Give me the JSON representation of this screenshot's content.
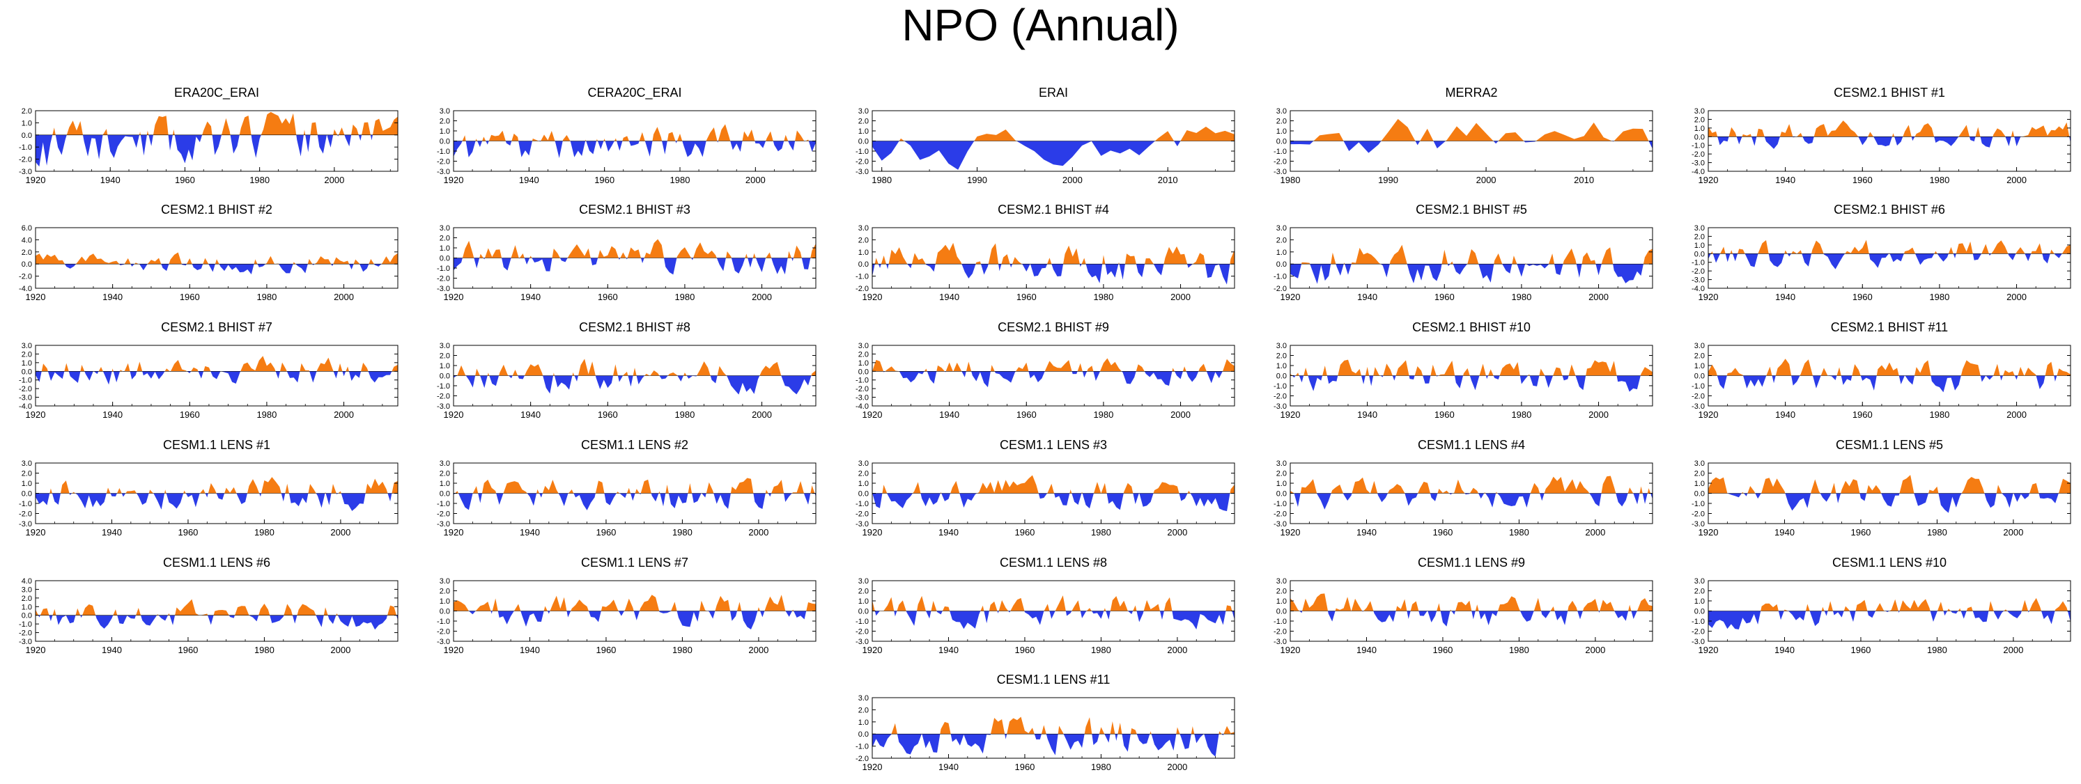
{
  "title": "NPO (Annual)",
  "colors": {
    "positive": "#f57c12",
    "negative": "#2b3ce8",
    "axis": "#000000"
  },
  "chart_data": [
    {
      "type": "area",
      "title": "ERA20C_ERAI",
      "x_start": 1920,
      "x_end": 2017,
      "xticks": [
        1920,
        1940,
        1960,
        1980,
        2000
      ],
      "ylim": [
        -3,
        2
      ],
      "yticks": [
        "2.0",
        "1.0",
        "0.0",
        "-1.0",
        "-2.0",
        "-3.0"
      ],
      "seed": 11,
      "amp": 1.2,
      "trend": 0.016,
      "bias": -0.4
    },
    {
      "type": "area",
      "title": "CERA20C_ERAI",
      "x_start": 1920,
      "x_end": 2016,
      "xticks": [
        1920,
        1940,
        1960,
        1980,
        2000
      ],
      "ylim": [
        -3,
        3
      ],
      "yticks": [
        "3.0",
        "2.0",
        "1.0",
        "0.0",
        "-1.0",
        "-2.0",
        "-3.0"
      ],
      "seed": 12,
      "amp": 1.0,
      "trend": 0.012,
      "bias": -0.3
    },
    {
      "type": "area",
      "title": "ERAI",
      "x_start": 1979,
      "x_end": 2017,
      "xticks": [
        1980,
        1990,
        2000,
        2010
      ],
      "ylim": [
        -3,
        3
      ],
      "yticks": [
        "3.0",
        "2.0",
        "1.0",
        "0.0",
        "-1.0",
        "-2.0",
        "-3.0"
      ],
      "seed": 13,
      "amp": 1.2,
      "trend": 0,
      "bias": 0,
      "smooth": 0.75
    },
    {
      "type": "area",
      "title": "MERRA2",
      "x_start": 1980,
      "x_end": 2017,
      "xticks": [
        1980,
        1990,
        2000,
        2010
      ],
      "ylim": [
        -3,
        3
      ],
      "yticks": [
        "3.0",
        "2.0",
        "1.0",
        "0.0",
        "-1.0",
        "-2.0",
        "-3.0"
      ],
      "seed": 14,
      "amp": 1.2,
      "trend": 0,
      "bias": 0,
      "smooth": 0.75
    },
    {
      "type": "area",
      "title": "CESM2.1 BHIST #1",
      "x_start": 1920,
      "x_end": 2014,
      "xticks": [
        1920,
        1940,
        1960,
        1980,
        2000
      ],
      "ylim": [
        -4,
        3
      ],
      "yticks": [
        "3.0",
        "2.0",
        "1.0",
        "0.0",
        "-1.0",
        "-2.0",
        "-3.0",
        "-4.0"
      ],
      "seed": 21,
      "amp": 1.0,
      "trend": 0,
      "bias": 0
    },
    {
      "type": "area",
      "title": "CESM2.1 BHIST #2",
      "x_start": 1920,
      "x_end": 2014,
      "xticks": [
        1920,
        1940,
        1960,
        1980,
        2000
      ],
      "ylim": [
        -4,
        6
      ],
      "yticks": [
        "6.0",
        "4.0",
        "2.0",
        "0.0",
        "-2.0",
        "-4.0"
      ],
      "seed": 22,
      "amp": 1.0,
      "trend": 0,
      "bias": 0
    },
    {
      "type": "area",
      "title": "CESM2.1 BHIST #3",
      "x_start": 1920,
      "x_end": 2014,
      "xticks": [
        1920,
        1940,
        1960,
        1980,
        2000
      ],
      "ylim": [
        -3,
        3
      ],
      "yticks": [
        "3.0",
        "2.0",
        "1.0",
        "0.0",
        "-1.0",
        "-2.0",
        "-3.0"
      ],
      "seed": 23,
      "amp": 1.0,
      "trend": 0,
      "bias": 0
    },
    {
      "type": "area",
      "title": "CESM2.1 BHIST #4",
      "x_start": 1920,
      "x_end": 2014,
      "xticks": [
        1920,
        1940,
        1960,
        1980,
        2000
      ],
      "ylim": [
        -2,
        3
      ],
      "yticks": [
        "3.0",
        "2.0",
        "1.0",
        "0.0",
        "-1.0",
        "-2.0"
      ],
      "seed": 24,
      "amp": 1.0,
      "trend": 0,
      "bias": 0
    },
    {
      "type": "area",
      "title": "CESM2.1 BHIST #5",
      "x_start": 1920,
      "x_end": 2014,
      "xticks": [
        1920,
        1940,
        1960,
        1980,
        2000
      ],
      "ylim": [
        -2,
        3
      ],
      "yticks": [
        "3.0",
        "2.0",
        "1.0",
        "0.0",
        "-1.0",
        "-2.0"
      ],
      "seed": 25,
      "amp": 1.0,
      "trend": 0,
      "bias": 0
    },
    {
      "type": "area",
      "title": "CESM2.1 BHIST #6",
      "x_start": 1920,
      "x_end": 2014,
      "xticks": [
        1920,
        1940,
        1960,
        1980,
        2000
      ],
      "ylim": [
        -4,
        3
      ],
      "yticks": [
        "3.0",
        "2.0",
        "1.0",
        "0.0",
        "-1.0",
        "-2.0",
        "-3.0",
        "-4.0"
      ],
      "seed": 26,
      "amp": 1.0,
      "trend": 0,
      "bias": 0
    },
    {
      "type": "area",
      "title": "CESM2.1 BHIST #7",
      "x_start": 1920,
      "x_end": 2014,
      "xticks": [
        1920,
        1940,
        1960,
        1980,
        2000
      ],
      "ylim": [
        -4,
        3
      ],
      "yticks": [
        "3.0",
        "2.0",
        "1.0",
        "0.0",
        "-1.0",
        "-2.0",
        "-3.0",
        "-4.0"
      ],
      "seed": 27,
      "amp": 1.0,
      "trend": 0,
      "bias": 0
    },
    {
      "type": "area",
      "title": "CESM2.1 BHIST #8",
      "x_start": 1920,
      "x_end": 2014,
      "xticks": [
        1920,
        1940,
        1960,
        1980,
        2000
      ],
      "ylim": [
        -3,
        3
      ],
      "yticks": [
        "3.0",
        "2.0",
        "1.0",
        "0.0",
        "-1.0",
        "-2.0",
        "-3.0"
      ],
      "seed": 28,
      "amp": 1.0,
      "trend": 0,
      "bias": 0
    },
    {
      "type": "area",
      "title": "CESM2.1 BHIST #9",
      "x_start": 1920,
      "x_end": 2014,
      "xticks": [
        1920,
        1940,
        1960,
        1980,
        2000
      ],
      "ylim": [
        -4,
        3
      ],
      "yticks": [
        "3.0",
        "2.0",
        "1.0",
        "0.0",
        "-1.0",
        "-2.0",
        "-3.0",
        "-4.0"
      ],
      "seed": 29,
      "amp": 1.0,
      "trend": 0,
      "bias": 0
    },
    {
      "type": "area",
      "title": "CESM2.1 BHIST #10",
      "x_start": 1920,
      "x_end": 2014,
      "xticks": [
        1920,
        1940,
        1960,
        1980,
        2000
      ],
      "ylim": [
        -3,
        3
      ],
      "yticks": [
        "3.0",
        "2.0",
        "1.0",
        "0.0",
        "-1.0",
        "-2.0",
        "-3.0"
      ],
      "seed": 30,
      "amp": 1.0,
      "trend": 0,
      "bias": 0
    },
    {
      "type": "area",
      "title": "CESM2.1 BHIST #11",
      "x_start": 1920,
      "x_end": 2014,
      "xticks": [
        1920,
        1940,
        1960,
        1980,
        2000
      ],
      "ylim": [
        -3,
        3
      ],
      "yticks": [
        "3.0",
        "2.0",
        "1.0",
        "0.0",
        "-1.0",
        "-2.0",
        "-3.0"
      ],
      "seed": 31,
      "amp": 1.0,
      "trend": 0,
      "bias": 0
    },
    {
      "type": "area",
      "title": "CESM1.1 LENS #1",
      "x_start": 1920,
      "x_end": 2015,
      "xticks": [
        1920,
        1940,
        1960,
        1980,
        2000
      ],
      "ylim": [
        -3,
        3
      ],
      "yticks": [
        "3.0",
        "2.0",
        "1.0",
        "0.0",
        "-1.0",
        "-2.0",
        "-3.0"
      ],
      "seed": 41,
      "amp": 1.0,
      "trend": 0,
      "bias": 0
    },
    {
      "type": "area",
      "title": "CESM1.1 LENS #2",
      "x_start": 1920,
      "x_end": 2015,
      "xticks": [
        1920,
        1940,
        1960,
        1980,
        2000
      ],
      "ylim": [
        -3,
        3
      ],
      "yticks": [
        "3.0",
        "2.0",
        "1.0",
        "0.0",
        "-1.0",
        "-2.0",
        "-3.0"
      ],
      "seed": 42,
      "amp": 1.0,
      "trend": 0,
      "bias": 0
    },
    {
      "type": "area",
      "title": "CESM1.1 LENS #3",
      "x_start": 1920,
      "x_end": 2015,
      "xticks": [
        1920,
        1940,
        1960,
        1980,
        2000
      ],
      "ylim": [
        -3,
        3
      ],
      "yticks": [
        "3.0",
        "2.0",
        "1.0",
        "0.0",
        "-1.0",
        "-2.0",
        "-3.0"
      ],
      "seed": 43,
      "amp": 1.0,
      "trend": 0,
      "bias": 0
    },
    {
      "type": "area",
      "title": "CESM1.1 LENS #4",
      "x_start": 1920,
      "x_end": 2015,
      "xticks": [
        1920,
        1940,
        1960,
        1980,
        2000
      ],
      "ylim": [
        -3,
        3
      ],
      "yticks": [
        "3.0",
        "2.0",
        "1.0",
        "0.0",
        "-1.0",
        "-2.0",
        "-3.0"
      ],
      "seed": 44,
      "amp": 1.0,
      "trend": 0,
      "bias": 0
    },
    {
      "type": "area",
      "title": "CESM1.1 LENS #5",
      "x_start": 1920,
      "x_end": 2015,
      "xticks": [
        1920,
        1940,
        1960,
        1980,
        2000
      ],
      "ylim": [
        -3,
        3
      ],
      "yticks": [
        "3.0",
        "2.0",
        "1.0",
        "0.0",
        "-1.0",
        "-2.0",
        "-3.0"
      ],
      "seed": 45,
      "amp": 1.0,
      "trend": 0,
      "bias": 0
    },
    {
      "type": "area",
      "title": "CESM1.1 LENS #6",
      "x_start": 1920,
      "x_end": 2015,
      "xticks": [
        1920,
        1940,
        1960,
        1980,
        2000
      ],
      "ylim": [
        -3,
        4
      ],
      "yticks": [
        "4.0",
        "3.0",
        "2.0",
        "1.0",
        "0.0",
        "-1.0",
        "-2.0",
        "-3.0"
      ],
      "seed": 46,
      "amp": 1.0,
      "trend": 0,
      "bias": 0
    },
    {
      "type": "area",
      "title": "CESM1.1 LENS #7",
      "x_start": 1920,
      "x_end": 2015,
      "xticks": [
        1920,
        1940,
        1960,
        1980,
        2000
      ],
      "ylim": [
        -3,
        3
      ],
      "yticks": [
        "3.0",
        "2.0",
        "1.0",
        "0.0",
        "-1.0",
        "-2.0",
        "-3.0"
      ],
      "seed": 47,
      "amp": 1.0,
      "trend": 0,
      "bias": 0
    },
    {
      "type": "area",
      "title": "CESM1.1 LENS #8",
      "x_start": 1920,
      "x_end": 2015,
      "xticks": [
        1920,
        1940,
        1960,
        1980,
        2000
      ],
      "ylim": [
        -3,
        3
      ],
      "yticks": [
        "3.0",
        "2.0",
        "1.0",
        "0.0",
        "-1.0",
        "-2.0",
        "-3.0"
      ],
      "seed": 48,
      "amp": 1.0,
      "trend": 0,
      "bias": 0
    },
    {
      "type": "area",
      "title": "CESM1.1 LENS #9",
      "x_start": 1920,
      "x_end": 2015,
      "xticks": [
        1920,
        1940,
        1960,
        1980,
        2000
      ],
      "ylim": [
        -3,
        3
      ],
      "yticks": [
        "3.0",
        "2.0",
        "1.0",
        "0.0",
        "-1.0",
        "-2.0",
        "-3.0"
      ],
      "seed": 49,
      "amp": 1.0,
      "trend": 0,
      "bias": 0
    },
    {
      "type": "area",
      "title": "CESM1.1 LENS #10",
      "x_start": 1920,
      "x_end": 2015,
      "xticks": [
        1920,
        1940,
        1960,
        1980,
        2000
      ],
      "ylim": [
        -3,
        3
      ],
      "yticks": [
        "3.0",
        "2.0",
        "1.0",
        "0.0",
        "-1.0",
        "-2.0",
        "-3.0"
      ],
      "seed": 50,
      "amp": 1.0,
      "trend": 0,
      "bias": 0
    },
    {
      "type": "area",
      "title": "CESM1.1 LENS #11",
      "x_start": 1920,
      "x_end": 2015,
      "xticks": [
        1920,
        1940,
        1960,
        1980,
        2000
      ],
      "ylim": [
        -2,
        3
      ],
      "yticks": [
        "3.0",
        "2.0",
        "1.0",
        "0.0",
        "-1.0",
        "-2.0"
      ],
      "seed": 51,
      "amp": 1.0,
      "trend": 0,
      "bias": 0
    }
  ]
}
